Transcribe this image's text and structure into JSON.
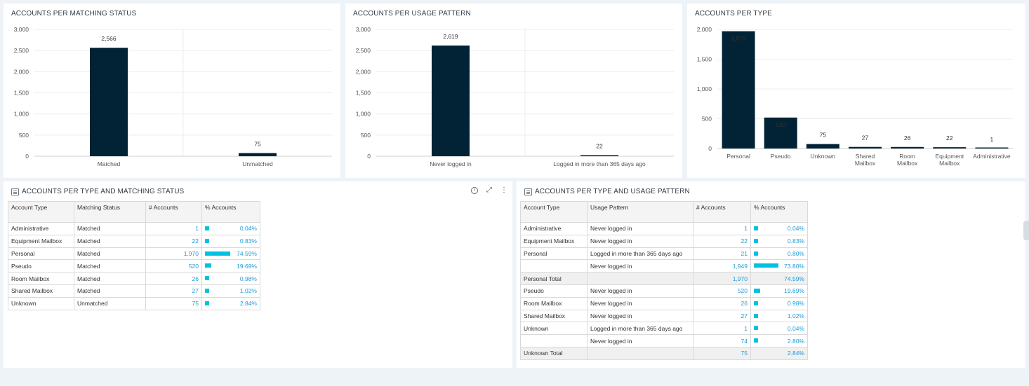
{
  "charts": {
    "matching": {
      "title": "ACCOUNTS PER MATCHING STATUS",
      "chart_data": {
        "type": "bar",
        "categories": [
          "Matched",
          "Unmatched"
        ],
        "values": [
          2566,
          75
        ],
        "value_labels": [
          "2,566",
          "75"
        ],
        "ylim": [
          0,
          3000
        ],
        "yticks": [
          0,
          500,
          1000,
          1500,
          2000,
          2500,
          3000
        ],
        "ytick_labels": [
          "0",
          "500",
          "1,000",
          "1,500",
          "2,000",
          "2,500",
          "3,000"
        ],
        "grid": true,
        "bar_color": "#022335"
      }
    },
    "usage": {
      "title": "ACCOUNTS PER USAGE PATTERN",
      "chart_data": {
        "type": "bar",
        "categories": [
          "Never logged in",
          "Logged in more than 365 days ago"
        ],
        "values": [
          2619,
          22
        ],
        "value_labels": [
          "2,619",
          "22"
        ],
        "ylim": [
          0,
          3000
        ],
        "yticks": [
          0,
          500,
          1000,
          1500,
          2000,
          2500,
          3000
        ],
        "ytick_labels": [
          "0",
          "500",
          "1,000",
          "1,500",
          "2,000",
          "2,500",
          "3,000"
        ],
        "grid": true,
        "bar_color": "#022335"
      }
    },
    "type": {
      "title": "ACCOUNTS PER TYPE",
      "chart_data": {
        "type": "bar",
        "categories": [
          "Personal",
          "Pseudo",
          "Unknown",
          "Shared Mailbox",
          "Room Mailbox",
          "Equipment Mailbox",
          "Administrative"
        ],
        "values": [
          1970,
          520,
          75,
          27,
          26,
          22,
          1
        ],
        "value_labels": [
          "1,970",
          "520",
          "75",
          "27",
          "26",
          "22",
          "1"
        ],
        "ylim": [
          0,
          2000
        ],
        "yticks": [
          0,
          500,
          1000,
          1500,
          2000
        ],
        "ytick_labels": [
          "0",
          "500",
          "1,000",
          "1,500",
          "2,000"
        ],
        "grid": true,
        "bar_color": "#022335"
      }
    }
  },
  "table_matching": {
    "title": "ACCOUNTS PER TYPE AND MATCHING STATUS",
    "columns": [
      "Account Type",
      "Matching Status",
      "# Accounts",
      "% Accounts"
    ],
    "rows": [
      {
        "type": "Administrative",
        "status": "Matched",
        "count": "1",
        "pct": "0.04%",
        "frac": 0.0004
      },
      {
        "type": "Equipment Mailbox",
        "status": "Matched",
        "count": "22",
        "pct": "0.83%",
        "frac": 0.0083
      },
      {
        "type": "Personal",
        "status": "Matched",
        "count": "1,970",
        "pct": "74.59%",
        "frac": 0.7459
      },
      {
        "type": "Pseudo",
        "status": "Matched",
        "count": "520",
        "pct": "19.69%",
        "frac": 0.1969
      },
      {
        "type": "Room Mailbox",
        "status": "Matched",
        "count": "26",
        "pct": "0.98%",
        "frac": 0.0098
      },
      {
        "type": "Shared Mailbox",
        "status": "Matched",
        "count": "27",
        "pct": "1.02%",
        "frac": 0.0102
      },
      {
        "type": "Unknown",
        "status": "Unmatched",
        "count": "75",
        "pct": "2.84%",
        "frac": 0.0284
      }
    ],
    "toolbar": {
      "info_icon": "info-icon",
      "expand_icon": "expand-icon",
      "more_icon": "more-vertical-icon"
    }
  },
  "table_usage": {
    "title": "ACCOUNTS PER TYPE AND USAGE PATTERN",
    "columns": [
      "Account Type",
      "Usage Pattern",
      "# Accounts",
      "% Accounts"
    ],
    "rows": [
      {
        "type": "Administrative",
        "pattern": "Never logged in",
        "count": "1",
        "pct": "0.04%",
        "frac": 0.0004
      },
      {
        "type": "Equipment Mailbox",
        "pattern": "Never logged in",
        "count": "22",
        "pct": "0.83%",
        "frac": 0.0083
      },
      {
        "type": "Personal",
        "pattern": "Logged in more than 365 days ago",
        "count": "21",
        "pct": "0.80%",
        "frac": 0.008
      },
      {
        "type": "",
        "pattern": "Never logged in",
        "count": "1,949",
        "pct": "73.80%",
        "frac": 0.738
      },
      {
        "type": "Personal Total",
        "pattern": "",
        "count": "1,970",
        "pct": "74.59%",
        "total": true
      },
      {
        "type": "Pseudo",
        "pattern": "Never logged in",
        "count": "520",
        "pct": "19.69%",
        "frac": 0.1969
      },
      {
        "type": "Room Mailbox",
        "pattern": "Never logged in",
        "count": "26",
        "pct": "0.98%",
        "frac": 0.0098
      },
      {
        "type": "Shared Mailbox",
        "pattern": "Never logged in",
        "count": "27",
        "pct": "1.02%",
        "frac": 0.0102
      },
      {
        "type": "Unknown",
        "pattern": "Logged in more than 365 days ago",
        "count": "1",
        "pct": "0.04%",
        "frac": 0.0004
      },
      {
        "type": "",
        "pattern": "Never logged in",
        "count": "74",
        "pct": "2.80%",
        "frac": 0.028
      },
      {
        "type": "Unknown Total",
        "pattern": "",
        "count": "75",
        "pct": "2.84%",
        "total": true
      }
    ]
  },
  "colors": {
    "bar": "#022335",
    "minibar": "#00c2e0",
    "link": "#1e9bd7",
    "background": "#eef3f8"
  }
}
